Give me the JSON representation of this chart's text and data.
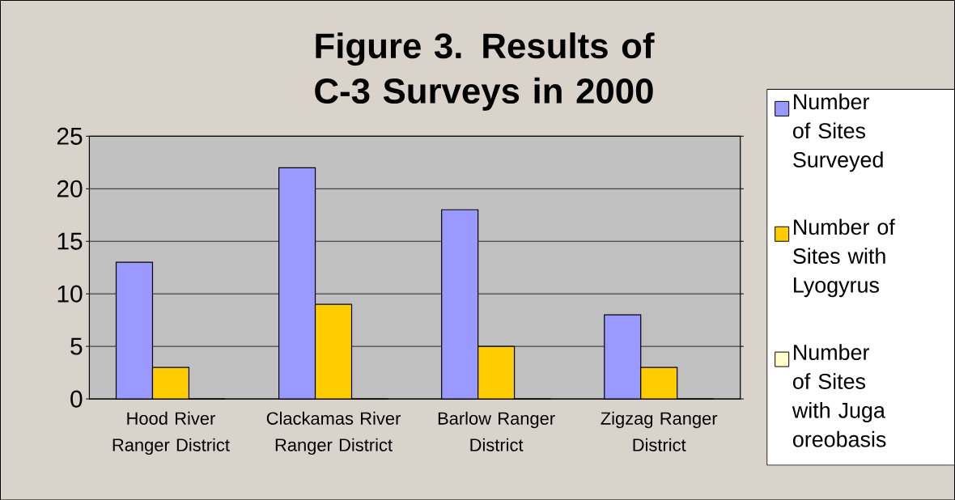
{
  "chart_data": {
    "type": "bar",
    "title": "Figure 3.  Results of C-3 Surveys in 2000",
    "categories": [
      "Hood River Ranger District",
      "Clackamas River Ranger District",
      "Barlow Ranger District",
      "Zigzag Ranger District"
    ],
    "series": [
      {
        "name": "Number of Sites Surveyed",
        "color": "#9999ff",
        "values": [
          13,
          22,
          18,
          8
        ]
      },
      {
        "name": "Number of Sites with Lyogyrus",
        "color": "#ffcc00",
        "values": [
          3,
          9,
          5,
          3
        ]
      },
      {
        "name": "Number of Sites with Juga oreobasis",
        "color": "#ffffcc",
        "values": [
          0,
          0,
          0,
          0
        ]
      }
    ],
    "ylim": [
      0,
      25
    ],
    "yticks": [
      0,
      5,
      10,
      15,
      20,
      25
    ],
    "grid": "y",
    "legend": "right"
  }
}
